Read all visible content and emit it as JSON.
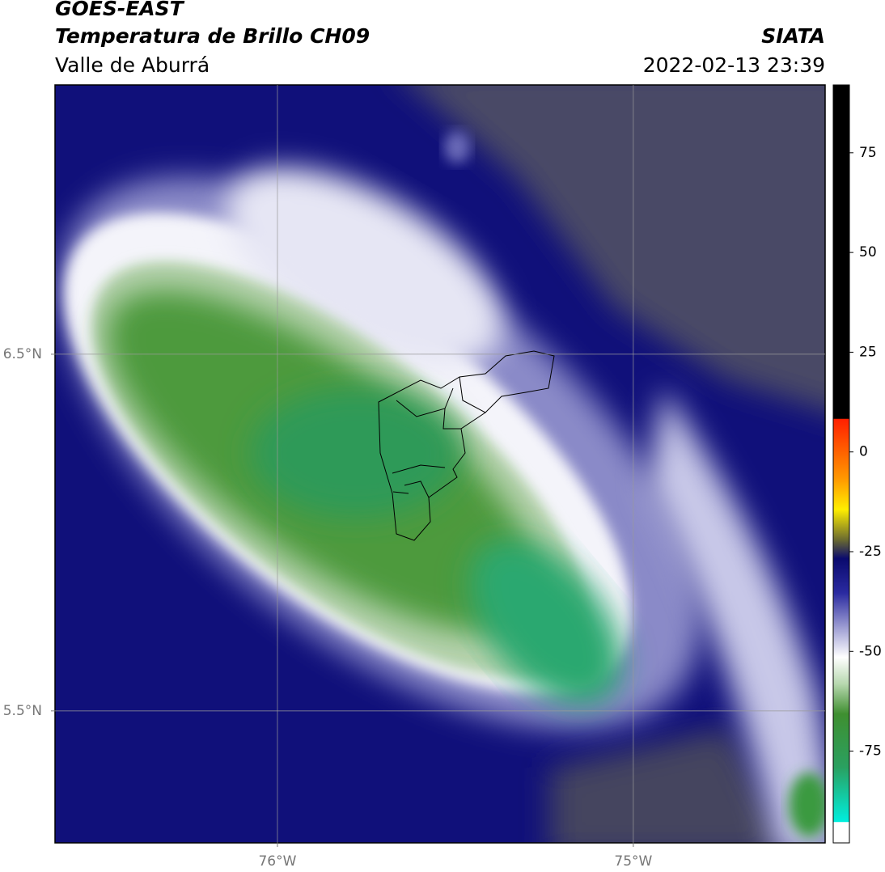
{
  "header": {
    "title": "GOES-EAST",
    "subtitle": "Temperatura de Brillo CH09",
    "region": "Valle de Aburrá",
    "agency": "SIATA",
    "datetime": "2022-02-13 23:39"
  },
  "map": {
    "xlim": [
      -76.625,
      -74.461
    ],
    "ylim": [
      5.13,
      7.255
    ],
    "xticks": [
      {
        "value": -76,
        "label": "76°W"
      },
      {
        "value": -75,
        "label": "75°W"
      }
    ],
    "yticks": [
      {
        "value": 5.5,
        "label": "5.5°N"
      },
      {
        "value": 6.5,
        "label": "6.5°N"
      }
    ],
    "grid": true
  },
  "colorbar": {
    "lim": [
      -98,
      92
    ],
    "ticks": [
      -75,
      -50,
      -25,
      0,
      25,
      50,
      75
    ]
  }
}
